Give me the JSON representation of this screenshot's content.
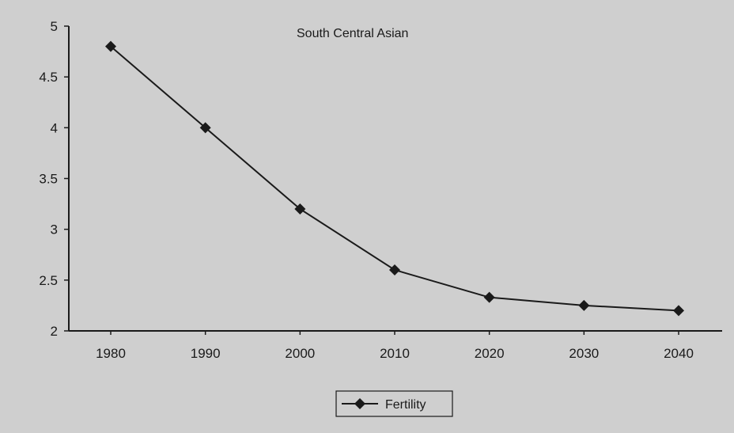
{
  "chart_data": {
    "type": "line",
    "title": "South Central Asian",
    "xlabel": "",
    "ylabel": "",
    "categories": [
      "1980",
      "1990",
      "2000",
      "2010",
      "2020",
      "2030",
      "2040"
    ],
    "series": [
      {
        "name": "Fertility",
        "values": [
          4.8,
          4.0,
          3.2,
          2.6,
          2.33,
          2.25,
          2.2
        ]
      }
    ],
    "yticks": [
      2,
      2.5,
      3,
      3.5,
      4,
      4.5,
      5
    ],
    "ylim": [
      2,
      5
    ],
    "grid": false,
    "legend": "bottom",
    "colors": {
      "line": "#1a1a1a",
      "marker": "#1a1a1a",
      "background": "#cfcfcf"
    },
    "marker": "diamond"
  }
}
